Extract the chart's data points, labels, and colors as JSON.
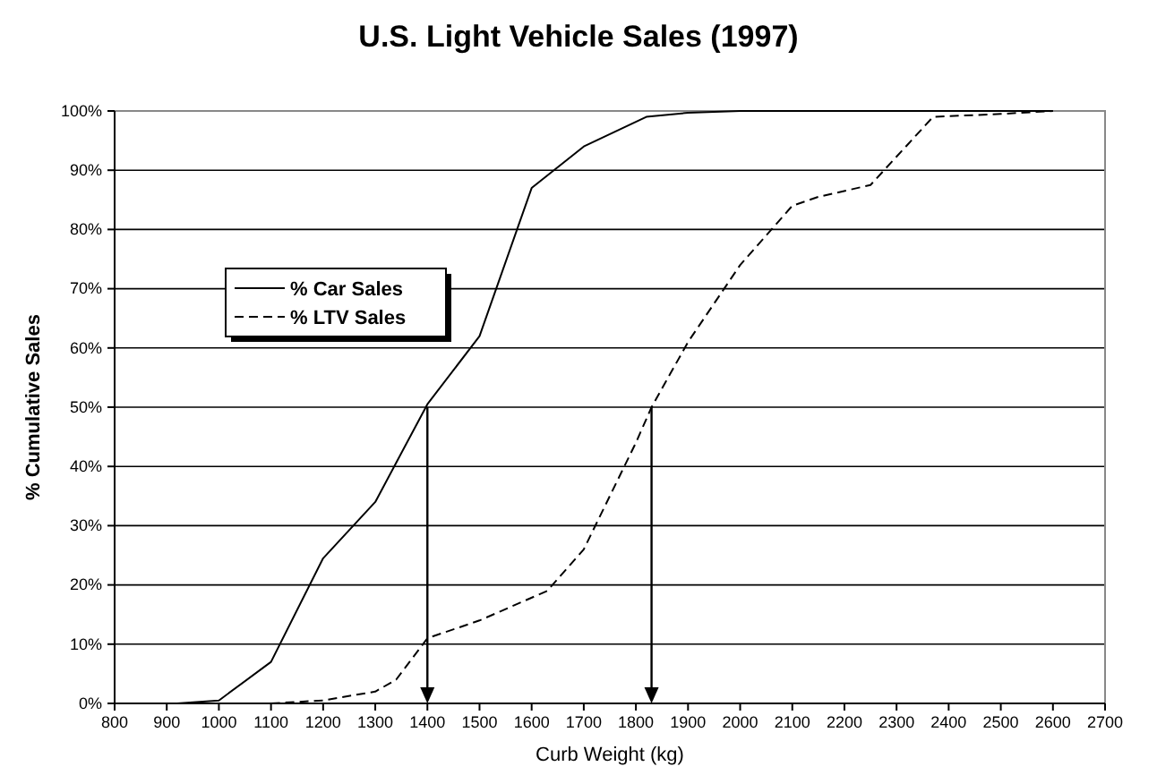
{
  "chart_data": {
    "type": "line",
    "title": "U.S. Light Vehicle Sales (1997)",
    "xlabel": "Curb Weight (kg)",
    "ylabel": "% Cumulative Sales",
    "xlim": [
      800,
      2700
    ],
    "xticks": [
      800,
      900,
      1000,
      1100,
      1200,
      1300,
      1400,
      1500,
      1600,
      1700,
      1800,
      1900,
      2000,
      2100,
      2200,
      2300,
      2400,
      2500,
      2600,
      2700
    ],
    "ylim": [
      0,
      100
    ],
    "yticks": [
      {
        "value": 0,
        "label": "0%"
      },
      {
        "value": 10,
        "label": "10%"
      },
      {
        "value": 20,
        "label": "20%"
      },
      {
        "value": 30,
        "label": "30%"
      },
      {
        "value": 40,
        "label": "40%"
      },
      {
        "value": 50,
        "label": "50%"
      },
      {
        "value": 60,
        "label": "60%"
      },
      {
        "value": 70,
        "label": "70%"
      },
      {
        "value": 80,
        "label": "80%"
      },
      {
        "value": 90,
        "label": "90%"
      },
      {
        "value": 100,
        "label": "100%"
      }
    ],
    "grid": "y",
    "legend": "left",
    "marker": "none",
    "series": [
      {
        "name": "% Car Sales",
        "color": "#000000",
        "line_style": "solid",
        "x": [
          920,
          1000,
          1100,
          1200,
          1300,
          1400,
          1500,
          1600,
          1700,
          1820,
          1900,
          2000,
          2600
        ],
        "values": [
          0,
          0.5,
          7,
          24.5,
          34,
          50.5,
          62,
          87,
          94,
          99,
          99.7,
          100,
          100
        ]
      },
      {
        "name": "% LTV Sales",
        "color": "#000000",
        "line_style": "dashed",
        "x": [
          1100,
          1200,
          1300,
          1340,
          1400,
          1500,
          1630,
          1700,
          1800,
          1830,
          1900,
          2000,
          2100,
          2150,
          2250,
          2370,
          2500,
          2600
        ],
        "values": [
          0,
          0.5,
          2,
          4,
          11,
          14,
          19,
          26,
          44,
          50,
          61,
          74,
          84,
          85.5,
          87.5,
          99,
          99.5,
          100
        ]
      }
    ]
  }
}
